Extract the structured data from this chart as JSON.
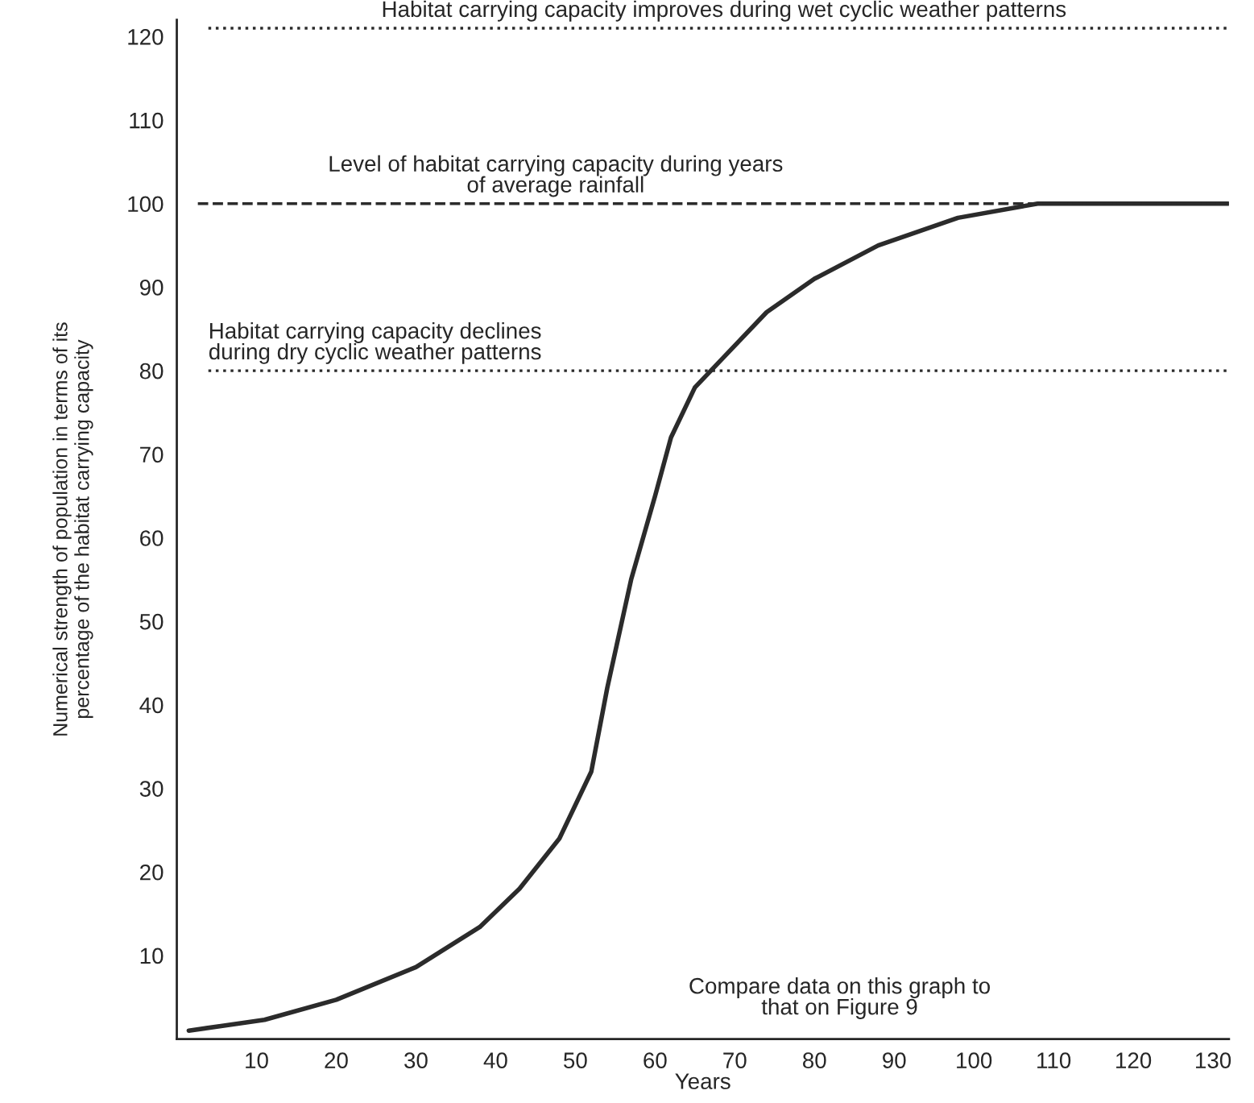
{
  "chart_data": {
    "type": "line",
    "xlabel": "Years",
    "ylabel": "Numerical strength of population in terms of its\npercentage of the habitat carrying capacity",
    "series": [
      {
        "color": "#2b2b2b",
        "x": [
          1.5,
          11,
          20,
          30,
          38,
          43,
          48,
          50,
          52,
          54,
          57,
          60,
          62,
          65,
          69,
          74,
          80,
          88,
          98,
          108,
          120,
          132
        ],
        "values": [
          1,
          2.3,
          4.7,
          8.6,
          13.4,
          18,
          24,
          28,
          32,
          42,
          55,
          65,
          72,
          78,
          82,
          87,
          91,
          95,
          98.3,
          100,
          100,
          100
        ]
      }
    ],
    "xlim": [
      0,
      132
    ],
    "ylim": [
      0,
      122
    ],
    "xticks": [
      10,
      20,
      30,
      40,
      50,
      60,
      70,
      80,
      90,
      100,
      110,
      120,
      130
    ],
    "yticks": [
      10,
      20,
      30,
      40,
      50,
      60,
      70,
      80,
      90,
      100,
      110,
      120
    ],
    "ref_lines": [
      {
        "axis": "y",
        "value": 121,
        "label": "Habitat carrying capacity improves during wet cyclic weather patterns",
        "line_style": "dotted",
        "color": "#2b2b2b"
      },
      {
        "axis": "y",
        "value": 100,
        "label": "Level of habitat carrying capacity during years\nof average rainfall",
        "line_style": "dashed",
        "color": "#2b2b2b"
      },
      {
        "axis": "y",
        "value": 80,
        "label": "Habitat carrying capacity declines\nduring dry cyclic weather patterns",
        "line_style": "dotted",
        "color": "#2b2b2b"
      }
    ],
    "annotations": [
      "Compare data on this graph to\nthat on Figure 9"
    ],
    "grid": false,
    "legend": false,
    "marker": "none",
    "line_style": "solid"
  }
}
